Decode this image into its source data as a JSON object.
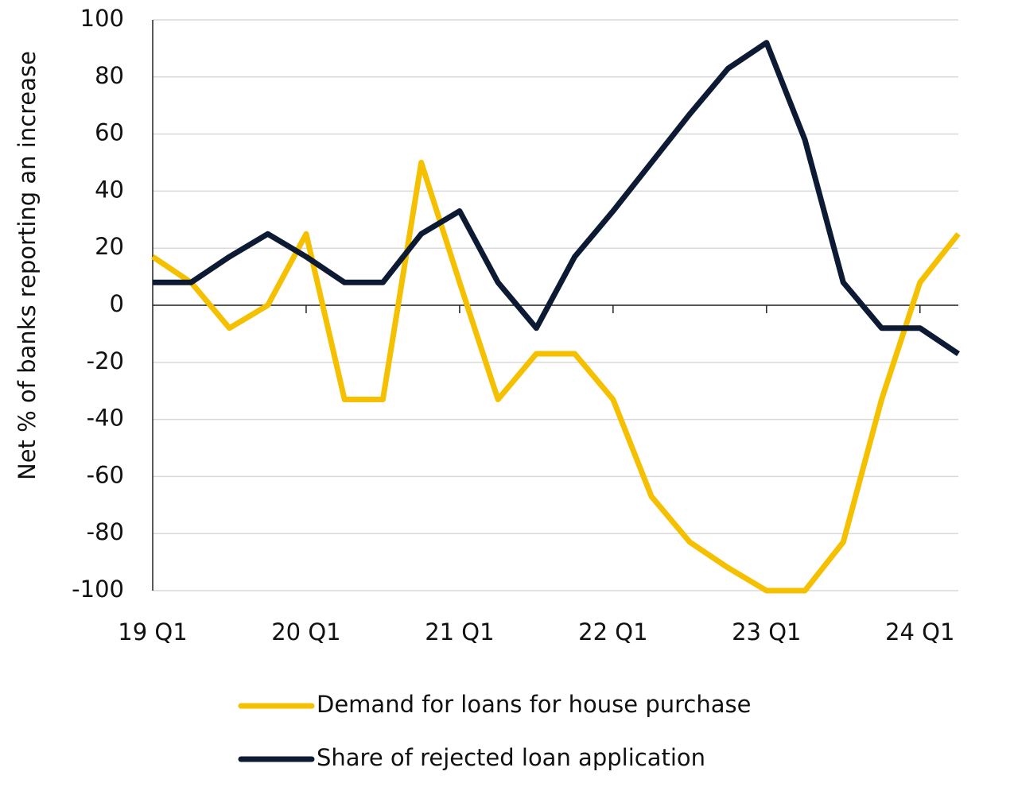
{
  "chart_data": {
    "type": "line",
    "y_label": "Net % of banks reporting an increase",
    "categories": [
      "19 Q1",
      null,
      null,
      null,
      "20 Q1",
      null,
      null,
      null,
      "21 Q1",
      null,
      null,
      null,
      "22 Q1",
      null,
      null,
      null,
      "23 Q1",
      null,
      null,
      null,
      "24 Q1",
      null
    ],
    "series": [
      {
        "name": "Demand for loans for house purchase",
        "color": "#f5c000",
        "values": [
          17,
          8,
          -8,
          0,
          25,
          -33,
          -33,
          50,
          8,
          -33,
          -17,
          -17,
          -33,
          -67,
          -83,
          -92,
          -100,
          -100,
          -83,
          -33,
          8,
          25
        ]
      },
      {
        "name": "Share of rejected loan application",
        "color": "#0c1a33",
        "values": [
          8,
          8,
          17,
          25,
          17,
          8,
          8,
          25,
          33,
          8,
          -8,
          17,
          33,
          50,
          67,
          83,
          92,
          58,
          8,
          -8,
          -8,
          -17
        ]
      }
    ],
    "ylim": [
      -100,
      100
    ],
    "yticks": [
      -100,
      -80,
      -60,
      -40,
      -20,
      0,
      20,
      40,
      60,
      80,
      100
    ],
    "grid": true
  }
}
